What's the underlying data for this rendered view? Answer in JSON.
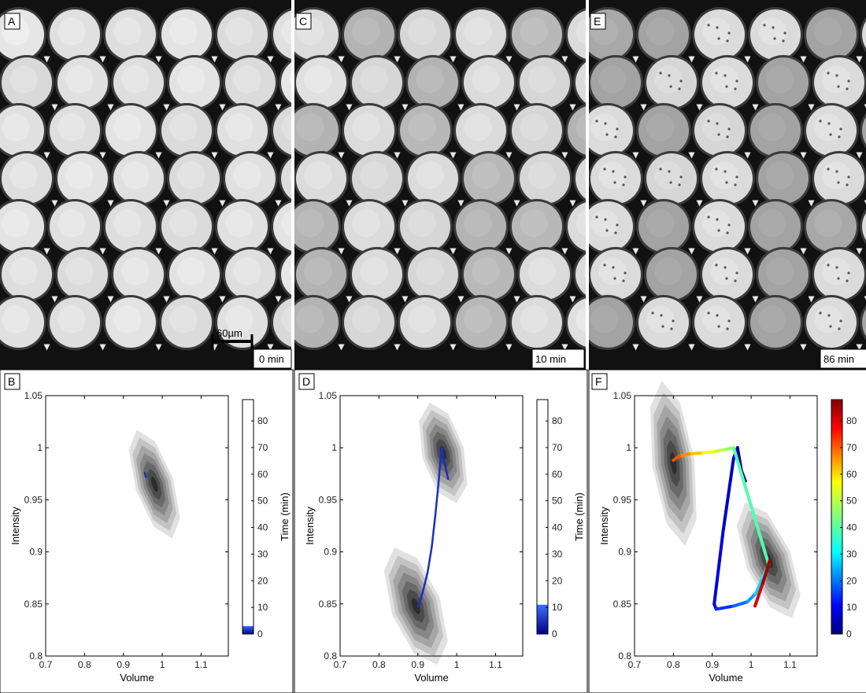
{
  "panels": {
    "A": {
      "letter": "A",
      "time": "0 min",
      "scalebar": "60µm",
      "brightness": [
        0.9,
        0.88,
        0.87,
        0.89,
        0.86,
        0.88,
        0.85,
        0.88,
        0.87,
        0.89,
        0.86,
        0.9,
        0.88,
        0.87,
        0.89,
        0.86,
        0.88,
        0.85,
        0.87,
        0.89,
        0.88,
        0.86,
        0.88,
        0.87,
        0.89,
        0.88,
        0.87,
        0.86,
        0.88,
        0.89,
        0.87,
        0.86,
        0.88,
        0.89,
        0.87
      ]
    },
    "C": {
      "letter": "C",
      "time": "10 min",
      "brightness": [
        0.86,
        0.7,
        0.84,
        0.86,
        0.72,
        0.86,
        0.88,
        0.84,
        0.7,
        0.86,
        0.84,
        0.86,
        0.7,
        0.86,
        0.72,
        0.86,
        0.84,
        0.7,
        0.86,
        0.84,
        0.86,
        0.72,
        0.84,
        0.86,
        0.7,
        0.86,
        0.84,
        0.7,
        0.72,
        0.86,
        0.7,
        0.86,
        0.84,
        0.72,
        0.86
      ]
    },
    "E": {
      "letter": "E",
      "time": "86 min",
      "brightness": [
        0.66,
        0.64,
        0.86,
        0.86,
        0.64,
        0.86,
        0.64,
        0.84,
        0.86,
        0.64,
        0.86,
        0.64,
        0.86,
        0.64,
        0.84,
        0.64,
        0.86,
        0.64,
        0.86,
        0.84,
        0.86,
        0.64,
        0.86,
        0.64,
        0.86,
        0.64,
        0.86,
        0.64,
        0.66,
        0.86,
        0.86,
        0.64,
        0.86,
        0.64,
        0.86
      ]
    },
    "B": {
      "letter": "B",
      "chart_data": {
        "type": "heatmap",
        "xlabel": "Volume",
        "ylabel": "Intensity",
        "xlim": [
          0.7,
          1.17
        ],
        "ylim": [
          0.8,
          1.05
        ],
        "xticks": [
          "0.7",
          "0.8",
          "0.9",
          "1",
          "1.1"
        ],
        "yticks": [
          "0.8",
          "0.85",
          "0.9",
          "0.95",
          "1",
          "1.05"
        ],
        "clusters": [
          {
            "x": 0.98,
            "y": 0.965,
            "sx": 0.05,
            "sy": 0.055,
            "angle": -18
          }
        ],
        "trajectory_times": [
          0,
          4
        ],
        "trajectory_x": [
          0.955,
          0.958
        ],
        "trajectory_y": [
          0.976,
          0.972
        ],
        "colorbar": {
          "label": "Time (min)",
          "ticks": [
            "0",
            "10",
            "20",
            "30",
            "40",
            "50",
            "60",
            "70",
            "80"
          ],
          "range": [
            0,
            88
          ],
          "fill_max": 3
        }
      }
    },
    "D": {
      "letter": "D",
      "chart_data": {
        "type": "heatmap",
        "xlabel": "Volume",
        "ylabel": "Intensity",
        "xlim": [
          0.7,
          1.17
        ],
        "ylim": [
          0.8,
          1.05
        ],
        "xticks": [
          "0.7",
          "0.8",
          "0.9",
          "1",
          "1.1"
        ],
        "yticks": [
          "0.8",
          "0.85",
          "0.9",
          "0.95",
          "1",
          "1.05"
        ],
        "clusters": [
          {
            "x": 0.965,
            "y": 0.995,
            "sx": 0.055,
            "sy": 0.05,
            "angle": -15
          },
          {
            "x": 0.895,
            "y": 0.848,
            "sx": 0.065,
            "sy": 0.06,
            "angle": -20
          }
        ],
        "trajectory_times": [
          0,
          1,
          2,
          3,
          4,
          5,
          6,
          7,
          8,
          9,
          10
        ],
        "trajectory_x": [
          0.978,
          0.972,
          0.965,
          0.962,
          0.96,
          0.953,
          0.945,
          0.936,
          0.925,
          0.913,
          0.902
        ],
        "trajectory_y": [
          0.97,
          0.98,
          0.992,
          1.0,
          0.996,
          0.965,
          0.935,
          0.905,
          0.88,
          0.862,
          0.848
        ],
        "colorbar": {
          "label": "Time (min)",
          "ticks": [
            "0",
            "10",
            "20",
            "30",
            "40",
            "50",
            "60",
            "70",
            "80"
          ],
          "range": [
            0,
            88
          ],
          "fill_max": 11
        }
      }
    },
    "F": {
      "letter": "F",
      "chart_data": {
        "type": "heatmap",
        "xlabel": "Volume",
        "ylabel": "Intensity",
        "xlim": [
          0.7,
          1.17
        ],
        "ylim": [
          0.8,
          1.05
        ],
        "xticks": [
          "0.7",
          "0.8",
          "0.9",
          "1",
          "1.1"
        ],
        "yticks": [
          "0.8",
          "0.85",
          "0.9",
          "0.95",
          "1",
          "1.05"
        ],
        "clusters": [
          {
            "x": 0.8,
            "y": 0.985,
            "sx": 0.055,
            "sy": 0.08,
            "angle": -8
          },
          {
            "x": 1.045,
            "y": 0.892,
            "sx": 0.06,
            "sy": 0.06,
            "angle": -22
          }
        ],
        "trajectory_times": [
          0,
          2,
          4,
          6,
          8,
          10,
          15,
          20,
          25,
          30,
          35,
          40,
          45,
          50,
          55,
          60,
          65,
          70,
          75,
          80,
          85,
          88
        ],
        "trajectory_x": [
          0.985,
          0.975,
          0.965,
          0.955,
          0.928,
          0.905,
          0.91,
          0.955,
          0.99,
          1.012,
          1.03,
          1.045,
          0.955,
          0.93,
          0.9,
          0.87,
          0.84,
          0.815,
          0.8,
          1.01,
          1.03,
          1.048
        ],
        "trajectory_y": [
          0.968,
          0.978,
          1.0,
          0.99,
          0.92,
          0.85,
          0.845,
          0.848,
          0.852,
          0.86,
          0.875,
          0.888,
          1.0,
          0.998,
          0.996,
          0.995,
          0.994,
          0.992,
          0.988,
          0.848,
          0.87,
          0.892
        ],
        "colorbar": {
          "label": "Time (min)",
          "ticks": [
            "0",
            "10",
            "20",
            "30",
            "40",
            "50",
            "60",
            "70",
            "80"
          ],
          "range": [
            0,
            88
          ],
          "fill_max": 88,
          "colormap": "jet"
        }
      }
    }
  }
}
